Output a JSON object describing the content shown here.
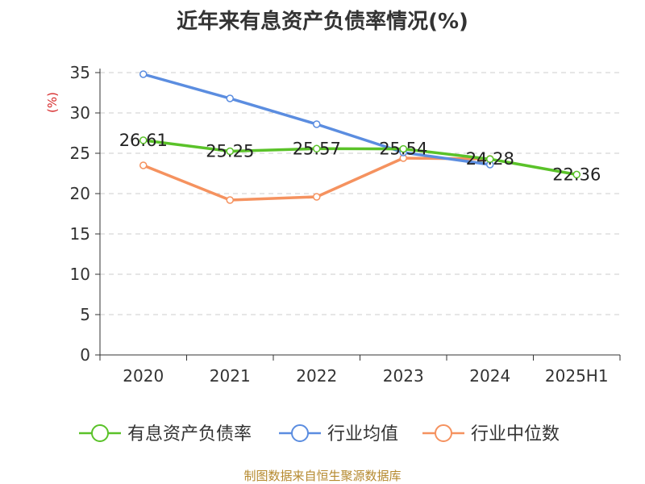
{
  "chart_data": {
    "type": "line",
    "title": "近年来有息资产负债率情况(%)",
    "ylabel": "(%)",
    "xlabel": "",
    "categories": [
      "2020",
      "2021",
      "2022",
      "2023",
      "2024",
      "2025H1"
    ],
    "ylim": [
      0,
      35
    ],
    "yticks": [
      0,
      5,
      10,
      15,
      20,
      25,
      30,
      35
    ],
    "grid": true,
    "legend_position": "bottom",
    "series": [
      {
        "name": "有息资产负债率",
        "color": "#5ac229",
        "values": [
          26.61,
          25.25,
          25.57,
          25.54,
          24.28,
          22.36
        ],
        "data_labels": [
          "26.61",
          "25.25",
          "25.57",
          "25.54",
          "24.28",
          "22.36"
        ]
      },
      {
        "name": "行业均值",
        "color": "#5b8de0",
        "values": [
          34.8,
          31.8,
          28.6,
          25.1,
          23.6,
          null
        ]
      },
      {
        "name": "行业中位数",
        "color": "#f5925f",
        "values": [
          23.5,
          19.2,
          19.6,
          24.4,
          24.3,
          null
        ]
      }
    ]
  },
  "source_note": "制图数据来自恒生聚源数据库"
}
